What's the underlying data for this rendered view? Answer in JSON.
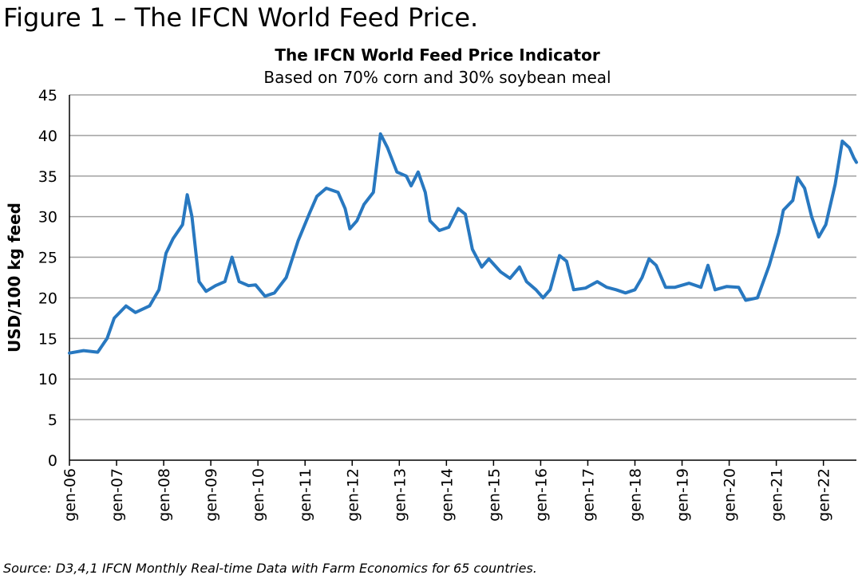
{
  "page_title": "Figure 1 – The IFCN World Feed Price.",
  "chart_data": {
    "type": "line",
    "title": "The IFCN World Feed Price Indicator",
    "subtitle": "Based on 70% corn and 30% soybean meal",
    "y_label": "USD/100 kg feed",
    "source": "Source: D3,4,1 IFCN Monthly Real-time Data with Farm Economics for 65 countries.",
    "x": [
      2006.0,
      2006.3,
      2006.6,
      2006.8,
      2006.95,
      2007.2,
      2007.4,
      2007.7,
      2007.9,
      2008.05,
      2008.2,
      2008.4,
      2008.5,
      2008.6,
      2008.75,
      2008.9,
      2009.1,
      2009.3,
      2009.45,
      2009.6,
      2009.8,
      2009.95,
      2010.15,
      2010.35,
      2010.6,
      2010.85,
      2011.1,
      2011.25,
      2011.45,
      2011.7,
      2011.85,
      2011.95,
      2012.1,
      2012.25,
      2012.45,
      2012.6,
      2012.75,
      2012.95,
      2013.15,
      2013.25,
      2013.4,
      2013.55,
      2013.65,
      2013.85,
      2014.05,
      2014.25,
      2014.4,
      2014.55,
      2014.75,
      2014.9,
      2015.15,
      2015.35,
      2015.55,
      2015.7,
      2015.9,
      2016.05,
      2016.2,
      2016.4,
      2016.55,
      2016.7,
      2016.95,
      2017.2,
      2017.4,
      2017.6,
      2017.8,
      2018.0,
      2018.15,
      2018.3,
      2018.45,
      2018.65,
      2018.85,
      2019.15,
      2019.4,
      2019.55,
      2019.7,
      2019.95,
      2020.2,
      2020.35,
      2020.6,
      2020.85,
      2021.05,
      2021.15,
      2021.35,
      2021.45,
      2021.6,
      2021.75,
      2021.9,
      2022.05,
      2022.25,
      2022.4,
      2022.55,
      2022.65,
      2022.7
    ],
    "series": [
      {
        "name": "IFCN World Feed Price Indicator",
        "color": "#2878c0",
        "values": [
          13.2,
          13.5,
          13.3,
          15,
          17.5,
          19,
          18.2,
          19,
          21,
          25.5,
          27.3,
          29,
          32.7,
          30,
          22,
          20.8,
          21.5,
          22,
          25,
          22,
          21.5,
          21.6,
          20.2,
          20.6,
          22.5,
          27,
          30.5,
          32.5,
          33.5,
          33,
          31,
          28.5,
          29.5,
          31.5,
          33,
          40.2,
          38.5,
          35.5,
          35,
          33.8,
          35.5,
          33,
          29.5,
          28.3,
          28.7,
          31,
          30.3,
          26,
          23.8,
          24.8,
          23.2,
          22.4,
          23.8,
          22,
          21,
          20,
          21,
          25.2,
          24.5,
          21,
          21.2,
          22,
          21.3,
          21,
          20.6,
          21,
          22.5,
          24.8,
          24,
          21.3,
          21.3,
          21.8,
          21.3,
          24,
          21,
          21.4,
          21.3,
          19.7,
          20,
          24,
          28,
          30.8,
          32,
          34.8,
          33.5,
          30,
          27.5,
          29,
          34,
          39.3,
          38.5,
          37.2,
          36.7
        ]
      }
    ],
    "xlim": [
      2006,
      2022.7
    ],
    "xticks": [
      {
        "value": 2006,
        "label": "gen-06"
      },
      {
        "value": 2007,
        "label": "gen-07"
      },
      {
        "value": 2008,
        "label": "gen-08"
      },
      {
        "value": 2009,
        "label": "gen-09"
      },
      {
        "value": 2010,
        "label": "gen-10"
      },
      {
        "value": 2011,
        "label": "gen-11"
      },
      {
        "value": 2012,
        "label": "gen-12"
      },
      {
        "value": 2013,
        "label": "gen-13"
      },
      {
        "value": 2014,
        "label": "gen-14"
      },
      {
        "value": 2015,
        "label": "gen-15"
      },
      {
        "value": 2016,
        "label": "gen-16"
      },
      {
        "value": 2017,
        "label": "gen-17"
      },
      {
        "value": 2018,
        "label": "gen-18"
      },
      {
        "value": 2019,
        "label": "gen-19"
      },
      {
        "value": 2020,
        "label": "gen-20"
      },
      {
        "value": 2021,
        "label": "gen-21"
      },
      {
        "value": 2022,
        "label": "gen-22"
      }
    ],
    "ylim": [
      0,
      45
    ],
    "yticks": [
      0,
      5,
      10,
      15,
      20,
      25,
      30,
      35,
      40,
      45
    ],
    "grid": true
  }
}
